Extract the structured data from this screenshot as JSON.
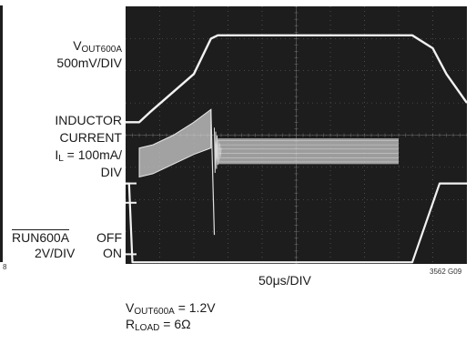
{
  "labels": {
    "ch1_name_main": "V",
    "ch1_name_sub": "OUT600A",
    "ch1_scale": "500mV/DIV",
    "ch2_line1": "INDUCTOR",
    "ch2_line2": "CURRENT",
    "ch2_line3_main": "I",
    "ch2_line3_sub": "L",
    "ch2_line3_rest": " = 100mA/",
    "ch2_line4": "DIV",
    "ch3_name": "RUN600A",
    "ch3_off": "OFF",
    "ch3_scale": "2V/DIV",
    "ch3_on": "ON",
    "left_fragment": "8",
    "timebase": "50μs/DIV",
    "figure_id": "3562 G09",
    "cond1_main": "V",
    "cond1_sub": "OUT600A",
    "cond1_rest": " = 1.2V",
    "cond2_main": "R",
    "cond2_sub": "LOAD",
    "cond2_rest": " = 6Ω"
  },
  "chart_data": {
    "type": "line",
    "title": "",
    "xlabel": "50μs/DIV",
    "ylabel": "",
    "grid": true,
    "x_divisions": 10,
    "y_divisions": 8,
    "x_range_us": [
      0,
      500
    ],
    "series": [
      {
        "trace": "V_OUT600A",
        "scale": "500mV/DIV",
        "x_us": [
          0,
          20,
          35,
          100,
          125,
          135,
          170,
          420,
          450,
          470,
          500
        ],
        "y_div": [
          4.4,
          4.4,
          4.7,
          5.9,
          7.0,
          7.1,
          7.1,
          7.1,
          6.7,
          5.9,
          5.0
        ]
      },
      {
        "trace": "INDUCTOR CURRENT I_L",
        "scale": "100mA/DIV",
        "segment1_x_us": [
          20,
          40,
          70,
          100,
          125,
          130
        ],
        "segment1_top_div": [
          3.6,
          3.7,
          4.0,
          4.4,
          4.8,
          0.9
        ],
        "segment1_bottom_div": [
          2.7,
          2.8,
          3.1,
          3.4,
          3.6,
          0.9
        ],
        "ripple_band_x_us": [
          135,
          400
        ],
        "ripple_band_div": [
          3.1,
          3.9
        ],
        "settle_ring_x_us": [
          130,
          140
        ]
      },
      {
        "trace": "RUN600A",
        "scale": "2V/DIV",
        "states": [
          "OFF",
          "ON"
        ],
        "x_us": [
          0,
          5,
          10,
          125,
          420,
          460,
          500
        ],
        "y_div": [
          2.5,
          2.5,
          0.05,
          0.05,
          0.05,
          2.5,
          2.5
        ]
      }
    ]
  }
}
